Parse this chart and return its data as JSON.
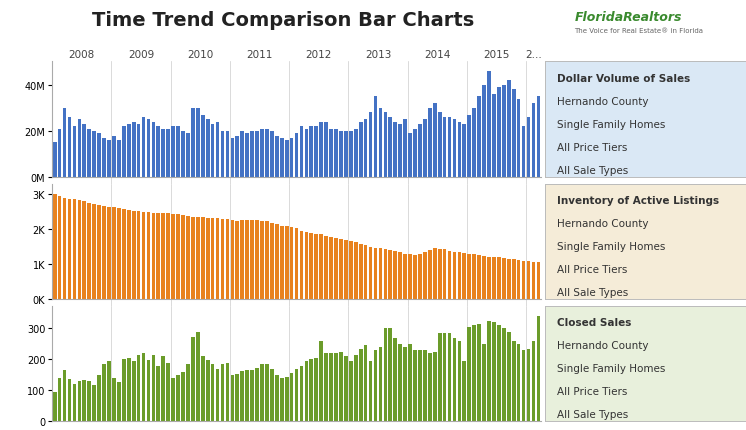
{
  "title": "Time Trend Comparison Bar Charts",
  "year_labels": [
    "2008",
    "2009",
    "2010",
    "2011",
    "2012",
    "2013",
    "2014",
    "2015",
    "2..."
  ],
  "bar_color_blue": "#4472C4",
  "bar_color_orange": "#E8821E",
  "bar_color_green": "#6B9C2A",
  "legend1_bg": "#DAE8F5",
  "legend2_bg": "#F5ECD8",
  "legend3_bg": "#E8F0DC",
  "chart_bg": "#FFFFFF",
  "legend1_lines": [
    "Dollar Volume of Sales",
    "Hernando County",
    "Single Family Homes",
    "All Price Tiers",
    "All Sale Types"
  ],
  "legend2_lines": [
    "Inventory of Active Listings",
    "Hernando County",
    "Single Family Homes",
    "All Price Tiers",
    "All Sale Types"
  ],
  "legend3_lines": [
    "Closed Sales",
    "Hernando County",
    "Single Family Homes",
    "All Price Tiers",
    "All Sale Types"
  ],
  "dollar_volume": [
    15000000.0,
    21000000.0,
    30000000.0,
    26000000.0,
    22000000.0,
    25000000.0,
    23000000.0,
    21000000.0,
    20000000.0,
    19000000.0,
    17000000.0,
    16000000.0,
    18000000.0,
    16000000.0,
    22000000.0,
    23000000.0,
    24000000.0,
    23000000.0,
    26000000.0,
    25000000.0,
    24000000.0,
    22000000.0,
    21000000.0,
    21000000.0,
    22000000.0,
    22000000.0,
    20000000.0,
    19000000.0,
    30000000.0,
    30000000.0,
    27000000.0,
    25000000.0,
    23000000.0,
    24000000.0,
    20000000.0,
    20000000.0,
    17000000.0,
    18000000.0,
    20000000.0,
    19000000.0,
    20000000.0,
    20000000.0,
    21000000.0,
    21000000.0,
    20000000.0,
    18000000.0,
    17000000.0,
    16000000.0,
    17000000.0,
    19000000.0,
    22000000.0,
    21000000.0,
    22000000.0,
    22000000.0,
    24000000.0,
    24000000.0,
    21000000.0,
    21000000.0,
    20000000.0,
    20000000.0,
    20000000.0,
    21000000.0,
    24000000.0,
    25000000.0,
    28000000.0,
    35000000.0,
    30000000.0,
    28000000.0,
    26000000.0,
    24000000.0,
    23000000.0,
    25000000.0,
    19000000.0,
    21000000.0,
    23000000.0,
    25000000.0,
    30000000.0,
    32000000.0,
    28000000.0,
    26000000.0,
    26000000.0,
    25000000.0,
    24000000.0,
    23000000.0,
    27000000.0,
    30000000.0,
    35000000.0,
    40000000.0,
    46000000.0,
    36000000.0,
    39000000.0,
    40000000.0,
    42000000.0,
    38000000.0,
    34000000.0,
    22000000.0,
    26000000.0,
    32000000.0,
    35000000.0
  ],
  "inventory": [
    3000,
    2950,
    2900,
    2870,
    2850,
    2820,
    2790,
    2750,
    2720,
    2690,
    2660,
    2640,
    2620,
    2600,
    2580,
    2550,
    2530,
    2510,
    2490,
    2480,
    2470,
    2460,
    2450,
    2450,
    2440,
    2420,
    2400,
    2380,
    2360,
    2350,
    2340,
    2330,
    2320,
    2310,
    2300,
    2290,
    2260,
    2240,
    2250,
    2250,
    2250,
    2250,
    2240,
    2230,
    2180,
    2150,
    2100,
    2090,
    2060,
    2020,
    1960,
    1930,
    1900,
    1870,
    1850,
    1800,
    1780,
    1750,
    1720,
    1700,
    1650,
    1620,
    1590,
    1550,
    1500,
    1470,
    1450,
    1430,
    1400,
    1380,
    1350,
    1300,
    1280,
    1260,
    1300,
    1350,
    1400,
    1450,
    1440,
    1420,
    1380,
    1360,
    1350,
    1330,
    1300,
    1280,
    1260,
    1240,
    1220,
    1210,
    1200,
    1180,
    1160,
    1140,
    1120,
    1100,
    1080,
    1060,
    1050
  ],
  "closed_sales": [
    95,
    140,
    165,
    135,
    120,
    130,
    133,
    128,
    115,
    148,
    183,
    192,
    138,
    125,
    198,
    202,
    193,
    213,
    218,
    196,
    212,
    178,
    208,
    188,
    138,
    148,
    158,
    183,
    270,
    285,
    210,
    195,
    183,
    168,
    183,
    188,
    148,
    153,
    160,
    165,
    165,
    170,
    183,
    183,
    168,
    148,
    138,
    143,
    155,
    168,
    178,
    193,
    200,
    203,
    258,
    218,
    218,
    218,
    223,
    208,
    193,
    213,
    233,
    243,
    193,
    228,
    238,
    298,
    298,
    268,
    248,
    238,
    248,
    228,
    228,
    228,
    218,
    223,
    283,
    283,
    283,
    268,
    258,
    193,
    303,
    308,
    313,
    248,
    320,
    318,
    308,
    298,
    285,
    258,
    248,
    228,
    233,
    258,
    338
  ],
  "main_bg": "#FFFFFF",
  "title_fontsize": 14,
  "legend_fontsize": 7.5,
  "ytick_fontsize": 7,
  "xtick_fontsize": 7.5
}
